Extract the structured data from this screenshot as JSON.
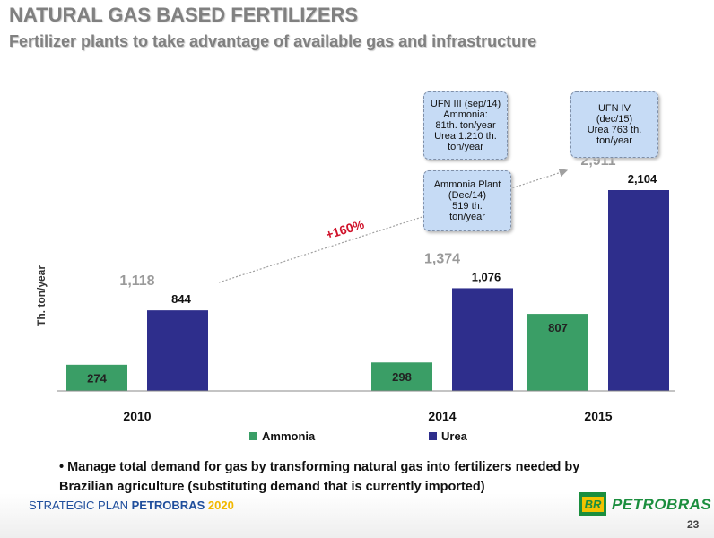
{
  "header": {
    "title": "NATURAL GAS BASED FERTILIZERS",
    "subtitle": "Fertilizer plants to take advantage of available gas and infrastructure"
  },
  "chart_data": {
    "type": "bar",
    "categories": [
      "2010",
      "",
      "2014",
      "2015"
    ],
    "series": [
      {
        "name": "Ammonia",
        "color": "#3a9e66",
        "values": [
          274,
          null,
          298,
          807
        ],
        "labels": [
          "274",
          "",
          "298",
          "807"
        ]
      },
      {
        "name": "Urea",
        "color": "#2e2e8c",
        "values": [
          844,
          null,
          1076,
          2104
        ],
        "labels": [
          "844",
          "",
          "1,076",
          "2,104"
        ]
      }
    ],
    "totals": [
      "1,118",
      "",
      "1,374",
      "2,911"
    ],
    "ylabel": "Th. ton/year",
    "ylim": [
      0,
      2400
    ],
    "legend_position": "bottom",
    "growth_label": "+160%",
    "callouts": {
      "ufn3": "UFN III (sep/14)\nAmmonia:\n81th. ton/year\nUrea 1.210 th.\nton/year",
      "ammonia_plant": "Ammonia Plant\n(Dec/14)\n519 th.\nton/year",
      "ufn4": "UFN IV\n(dec/15)\nUrea 763 th.\nton/year"
    }
  },
  "bullet": "• Manage total demand for gas by transforming natural gas into fertilizers needed by Brazilian agriculture (substituting demand that is currently imported)",
  "footer": {
    "plan_label": "STRATEGIC PLAN",
    "company": "PETROBRAS",
    "year": "2020",
    "logo_text": "BR",
    "brand": "PETROBRAS",
    "page_number": "23"
  }
}
